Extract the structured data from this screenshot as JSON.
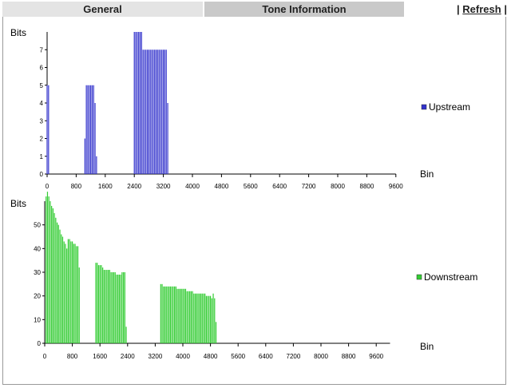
{
  "tabs": [
    {
      "label": "General",
      "active": false
    },
    {
      "label": "Tone Information",
      "active": true
    }
  ],
  "refresh": {
    "prefix": "|",
    "label": "Refresh",
    "suffix": "|"
  },
  "colors": {
    "upstream": "#3333cc",
    "downstream": "#33cc33"
  },
  "chart_data": [
    {
      "type": "bar",
      "ylabel": "Bits",
      "xlabel": "Bin",
      "legend": "Upstream",
      "legend_position": "right",
      "xlim": [
        0,
        9600
      ],
      "ylim": [
        0,
        8
      ],
      "xticks": [
        0,
        800,
        1600,
        2400,
        3200,
        4000,
        4800,
        5600,
        6400,
        7200,
        8000,
        8800,
        9600
      ],
      "yticks": [
        0,
        1,
        2,
        3,
        4,
        5,
        6,
        7
      ],
      "x": [
        0,
        40,
        1040,
        1080,
        1120,
        1160,
        1200,
        1240,
        1280,
        1320,
        1360,
        2400,
        2440,
        2480,
        2520,
        2560,
        2600,
        2640,
        2680,
        2720,
        2760,
        2800,
        2840,
        2880,
        2920,
        2960,
        3000,
        3040,
        3080,
        3120,
        3160,
        3200,
        3240,
        3280,
        3320
      ],
      "values": [
        5,
        5,
        2,
        5,
        5,
        5,
        5,
        5,
        5,
        4,
        1,
        8,
        8,
        8,
        8,
        8,
        8,
        7,
        7,
        7,
        7,
        7,
        7,
        7,
        7,
        7,
        7,
        7,
        7,
        7,
        7,
        7,
        7,
        7,
        4
      ]
    },
    {
      "type": "bar",
      "ylabel": "Bits",
      "xlabel": "Bin",
      "legend": "Downstream",
      "legend_position": "right",
      "xlim": [
        0,
        10000
      ],
      "ylim": [
        0,
        60
      ],
      "xticks": [
        0,
        800,
        1600,
        2400,
        3200,
        4000,
        4800,
        5600,
        6400,
        7200,
        8000,
        8800,
        9600
      ],
      "yticks": [
        0,
        10,
        20,
        30,
        40,
        50
      ],
      "x": [
        40,
        80,
        120,
        160,
        200,
        240,
        280,
        320,
        360,
        400,
        440,
        480,
        520,
        560,
        600,
        640,
        680,
        720,
        760,
        800,
        840,
        880,
        920,
        960,
        1000,
        1480,
        1520,
        1560,
        1600,
        1640,
        1680,
        1720,
        1760,
        1800,
        1840,
        1880,
        1920,
        1960,
        2000,
        2040,
        2080,
        2120,
        2160,
        2200,
        2240,
        2280,
        2320,
        2360,
        3360,
        3400,
        3440,
        3480,
        3520,
        3560,
        3600,
        3640,
        3680,
        3720,
        3760,
        3800,
        3840,
        3880,
        3920,
        3960,
        4000,
        4040,
        4080,
        4120,
        4160,
        4200,
        4240,
        4280,
        4320,
        4360,
        4400,
        4440,
        4480,
        4520,
        4560,
        4600,
        4640,
        4680,
        4720,
        4760,
        4800,
        4840,
        4880,
        4920,
        4960
      ],
      "values": [
        62,
        64,
        62,
        60,
        58,
        57,
        55,
        53,
        51,
        50,
        48,
        46,
        45,
        43,
        42,
        40,
        44,
        44,
        43,
        43,
        42,
        42,
        41,
        41,
        32,
        34,
        34,
        33,
        33,
        33,
        32,
        31,
        31,
        31,
        31,
        31,
        30,
        30,
        30,
        30,
        29,
        29,
        29,
        29,
        30,
        30,
        30,
        7,
        25,
        25,
        24,
        24,
        24,
        24,
        24,
        24,
        24,
        24,
        24,
        24,
        23,
        23,
        23,
        23,
        23,
        23,
        23,
        22,
        22,
        22,
        22,
        22,
        21,
        21,
        21,
        21,
        21,
        21,
        21,
        21,
        21,
        20,
        20,
        20,
        20,
        19,
        21,
        19,
        9
      ]
    }
  ]
}
